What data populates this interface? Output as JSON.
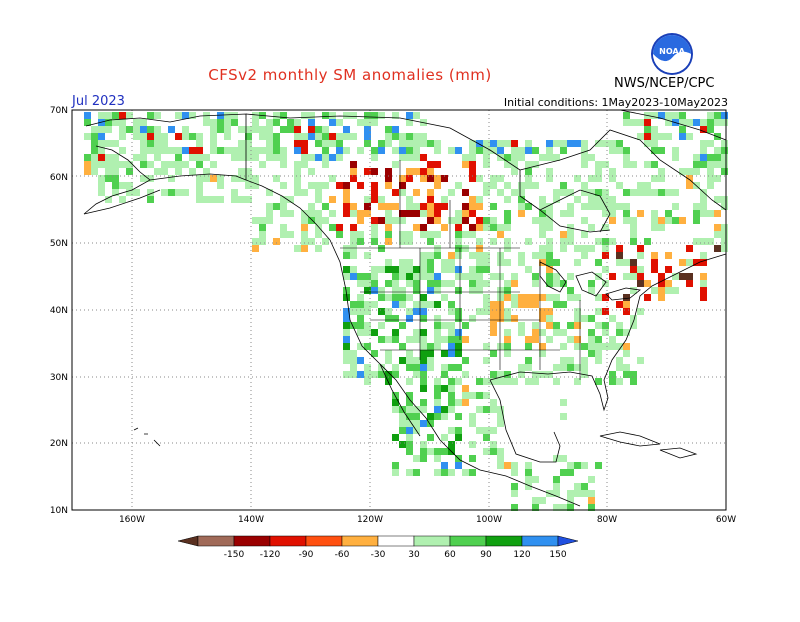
{
  "header": {
    "title": "CFSv2 monthly SM anomalies (mm)",
    "month": "Jul 2023",
    "initial_conditions": "Initial conditions: 1May2023-10May2023",
    "agency": "NWS/NCEP/CPC",
    "logo_text": "NOAA"
  },
  "axes": {
    "lat_labels": [
      "70N",
      "60N",
      "50N",
      "40N",
      "30N",
      "20N",
      "10N"
    ],
    "lon_labels": [
      "160W",
      "140W",
      "120W",
      "100W",
      "80W",
      "60W"
    ]
  },
  "colorbar": {
    "ticks": [
      "-150",
      "-120",
      "-90",
      "-60",
      "-30",
      "30",
      "60",
      "90",
      "120",
      "150"
    ],
    "colors": [
      "#5a3020",
      "#a06a58",
      "#9a0000",
      "#e01000",
      "#ff5010",
      "#ffb040",
      "#ffffff",
      "#b0f0b0",
      "#50d050",
      "#10a010",
      "#3090f0",
      "#2050e0"
    ]
  },
  "anomaly_colors": {
    "dry_extreme": "#5a3020",
    "dry_very": "#9a0000",
    "dry_strong": "#e01000",
    "dry_moderate": "#ff5010",
    "dry_light": "#ffb040",
    "wet_light": "#b0f0b0",
    "wet_moderate": "#50d050",
    "wet_strong": "#10a010",
    "wet_very": "#3090f0"
  }
}
